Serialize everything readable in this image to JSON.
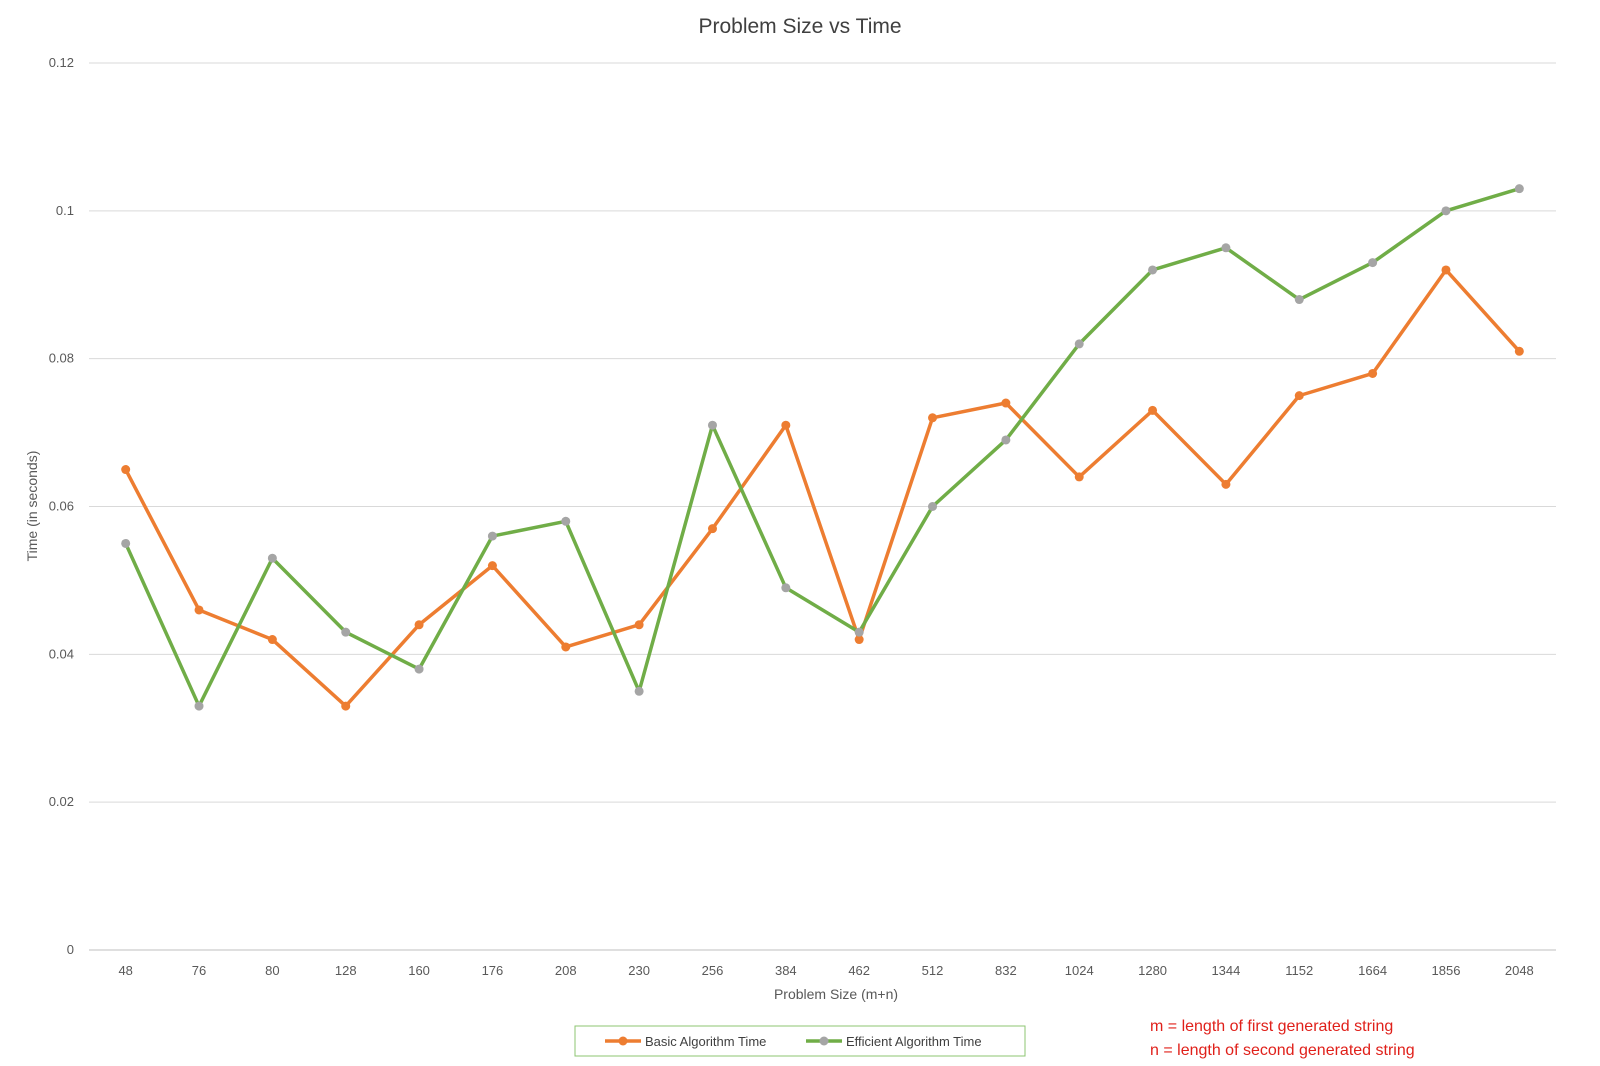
{
  "chart_data": {
    "type": "line",
    "title": "Problem Size vs Time",
    "xlabel": "Problem Size (m+n)",
    "ylabel": "Time (in seconds)",
    "categories": [
      "48",
      "76",
      "80",
      "128",
      "160",
      "176",
      "208",
      "230",
      "256",
      "384",
      "462",
      "512",
      "832",
      "1024",
      "1280",
      "1344",
      "1152",
      "1664",
      "1856",
      "2048"
    ],
    "ylim": [
      0,
      0.12
    ],
    "yticks": [
      "0",
      "0.02",
      "0.04",
      "0.06",
      "0.08",
      "0.1",
      "0.12"
    ],
    "grid": true,
    "legend_position": "bottom",
    "series": [
      {
        "name": "Basic Algorithm Time",
        "line_color": "#ed7d31",
        "marker_color": "#ed7d31",
        "values": [
          0.065,
          0.046,
          0.042,
          0.033,
          0.044,
          0.052,
          0.041,
          0.044,
          0.057,
          0.071,
          0.042,
          0.072,
          0.074,
          0.064,
          0.073,
          0.063,
          0.075,
          0.078,
          0.092,
          0.081
        ]
      },
      {
        "name": "Efficient Algorithm Time",
        "line_color": "#70ad47",
        "marker_color": "#a5a5a5",
        "values": [
          0.055,
          0.033,
          0.053,
          0.043,
          0.038,
          0.056,
          0.058,
          0.035,
          0.071,
          0.049,
          0.043,
          0.06,
          0.069,
          0.082,
          0.092,
          0.095,
          0.088,
          0.093,
          0.1,
          0.103
        ]
      }
    ]
  },
  "annotations": {
    "line1": "m = length of first generated string",
    "line2": "n = length of second generated string"
  }
}
